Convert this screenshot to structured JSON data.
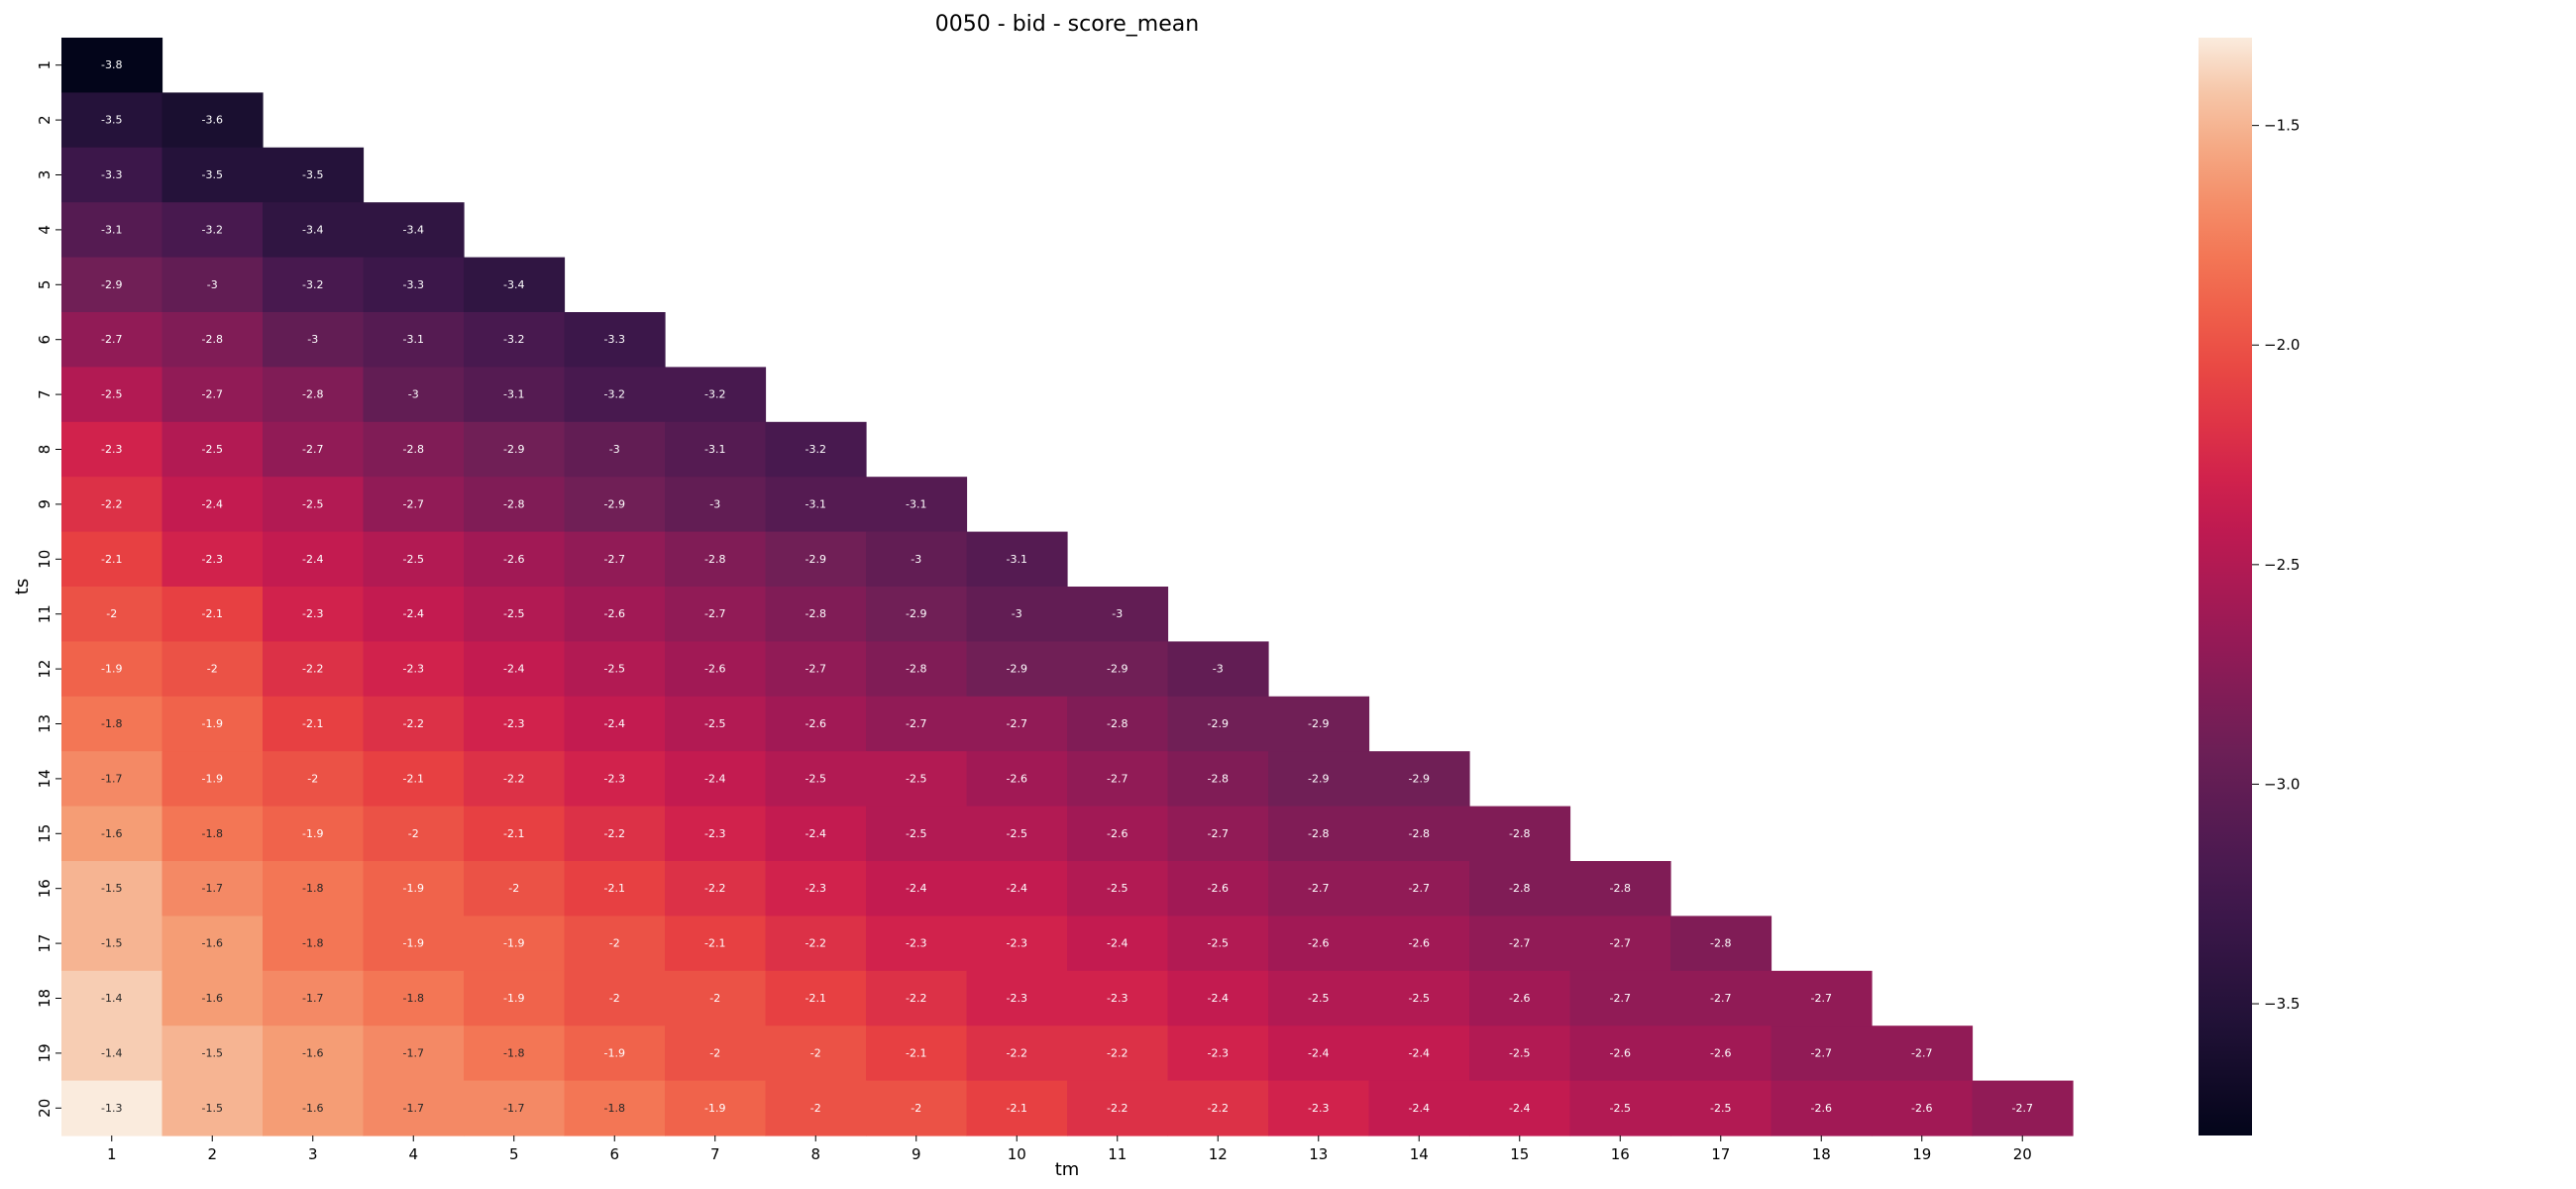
{
  "chart_data": {
    "type": "heatmap",
    "title": "0050 - bid - score_mean",
    "xlabel": "tm",
    "ylabel": "ts",
    "x": [
      1,
      2,
      3,
      4,
      5,
      6,
      7,
      8,
      9,
      10,
      11,
      12,
      13,
      14,
      15,
      16,
      17,
      18,
      19,
      20
    ],
    "y": [
      1,
      2,
      3,
      4,
      5,
      6,
      7,
      8,
      9,
      10,
      11,
      12,
      13,
      14,
      15,
      16,
      17,
      18,
      19,
      20
    ],
    "mask": "upper-triangle (cells with tm > ts are blank)",
    "colormap": "rocket",
    "vmin": -3.8,
    "vmax": -1.3,
    "colorbar_ticks": [
      -1.5,
      -2.0,
      -2.5,
      -3.0,
      -3.5
    ],
    "colorbar_tick_labels": [
      "−1.5",
      "−2.0",
      "−2.5",
      "−3.0",
      "−3.5"
    ],
    "values": [
      [
        -3.8
      ],
      [
        -3.5,
        -3.6
      ],
      [
        -3.3,
        -3.5,
        -3.5
      ],
      [
        -3.1,
        -3.2,
        -3.4,
        -3.4
      ],
      [
        -2.9,
        -3,
        -3.2,
        -3.3,
        -3.4
      ],
      [
        -2.7,
        -2.8,
        -3,
        -3.1,
        -3.2,
        -3.3
      ],
      [
        -2.5,
        -2.7,
        -2.8,
        -3,
        -3.1,
        -3.2,
        -3.2
      ],
      [
        -2.3,
        -2.5,
        -2.7,
        -2.8,
        -2.9,
        -3,
        -3.1,
        -3.2
      ],
      [
        -2.2,
        -2.4,
        -2.5,
        -2.7,
        -2.8,
        -2.9,
        -3,
        -3.1,
        -3.1
      ],
      [
        -2.1,
        -2.3,
        -2.4,
        -2.5,
        -2.6,
        -2.7,
        -2.8,
        -2.9,
        -3,
        -3.1
      ],
      [
        -2,
        -2.1,
        -2.3,
        -2.4,
        -2.5,
        -2.6,
        -2.7,
        -2.8,
        -2.9,
        -3,
        -3
      ],
      [
        -1.9,
        -2,
        -2.2,
        -2.3,
        -2.4,
        -2.5,
        -2.6,
        -2.7,
        -2.8,
        -2.9,
        -2.9,
        -3
      ],
      [
        -1.8,
        -1.9,
        -2.1,
        -2.2,
        -2.3,
        -2.4,
        -2.5,
        -2.6,
        -2.7,
        -2.7,
        -2.8,
        -2.9,
        -2.9
      ],
      [
        -1.7,
        -1.9,
        -2,
        -2.1,
        -2.2,
        -2.3,
        -2.4,
        -2.5,
        -2.5,
        -2.6,
        -2.7,
        -2.8,
        -2.9,
        -2.9
      ],
      [
        -1.6,
        -1.8,
        -1.9,
        -2,
        -2.1,
        -2.2,
        -2.3,
        -2.4,
        -2.5,
        -2.5,
        -2.6,
        -2.7,
        -2.8,
        -2.8,
        -2.8
      ],
      [
        -1.5,
        -1.7,
        -1.8,
        -1.9,
        -2,
        -2.1,
        -2.2,
        -2.3,
        -2.4,
        -2.4,
        -2.5,
        -2.6,
        -2.7,
        -2.7,
        -2.8,
        -2.8
      ],
      [
        -1.5,
        -1.6,
        -1.8,
        -1.9,
        -1.9,
        -2,
        -2.1,
        -2.2,
        -2.3,
        -2.3,
        -2.4,
        -2.5,
        -2.6,
        -2.6,
        -2.7,
        -2.7,
        -2.8
      ],
      [
        -1.4,
        -1.6,
        -1.7,
        -1.8,
        -1.9,
        -2,
        -2,
        -2.1,
        -2.2,
        -2.3,
        -2.3,
        -2.4,
        -2.5,
        -2.5,
        -2.6,
        -2.7,
        -2.7,
        -2.7
      ],
      [
        -1.4,
        -1.5,
        -1.6,
        -1.7,
        -1.8,
        -1.9,
        -2,
        -2,
        -2.1,
        -2.2,
        -2.2,
        -2.3,
        -2.4,
        -2.4,
        -2.5,
        -2.6,
        -2.6,
        -2.7,
        -2.7
      ],
      [
        -1.3,
        -1.5,
        -1.6,
        -1.7,
        -1.7,
        -1.8,
        -1.9,
        -2,
        -2,
        -2.1,
        -2.2,
        -2.2,
        -2.3,
        -2.4,
        -2.4,
        -2.5,
        -2.5,
        -2.6,
        -2.6,
        -2.7
      ]
    ],
    "grid": false,
    "legend": "colorbar right"
  }
}
